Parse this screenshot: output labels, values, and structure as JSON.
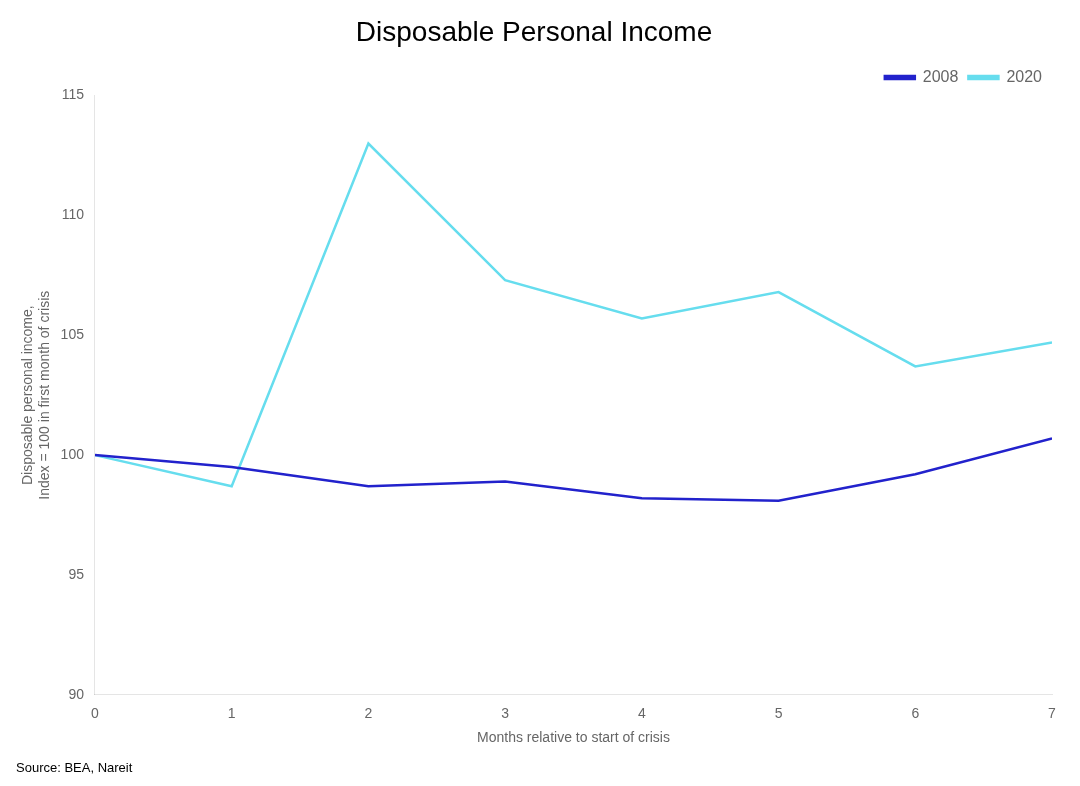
{
  "chart_data": {
    "type": "line",
    "title": "Disposable Personal Income",
    "xlabel": "Months relative to start of crisis",
    "ylabel": [
      "Disposable personal income,",
      "Index = 100 in first month of crisis"
    ],
    "annotations": [
      "Source: BEA, Nareit"
    ],
    "x": [
      0,
      1,
      2,
      3,
      4,
      5,
      6,
      7
    ],
    "series": [
      {
        "name": "2008",
        "color": "#2222cc",
        "values": [
          100.0,
          99.5,
          98.7,
          98.9,
          98.2,
          98.1,
          99.2,
          100.7
        ]
      },
      {
        "name": "2020",
        "color": "#66ddee",
        "values": [
          100.0,
          98.7,
          113.0,
          107.3,
          105.7,
          106.8,
          103.7,
          104.7
        ]
      }
    ],
    "xlim": [
      0,
      7
    ],
    "xticks": [
      0,
      1,
      2,
      3,
      4,
      5,
      6,
      7
    ],
    "ylim": [
      90,
      115
    ],
    "yticks": [
      90,
      95,
      100,
      105,
      110,
      115
    ],
    "grid": false,
    "legend": "upper right"
  }
}
